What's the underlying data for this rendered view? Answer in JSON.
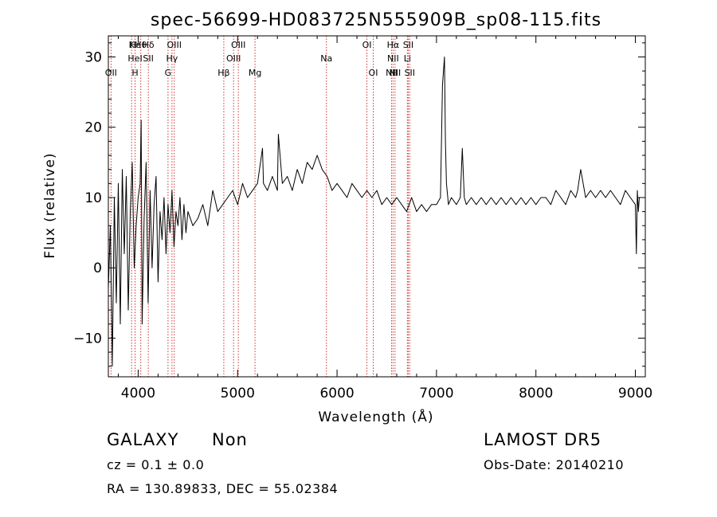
{
  "chart_data": {
    "type": "line",
    "title": "spec-56699-HD083725N555909B_sp08-115.fits",
    "xlabel": "Wavelength (Å)",
    "ylabel": "Flux (relative)",
    "xlim": [
      3700,
      9100
    ],
    "ylim": [
      -15.5,
      33
    ],
    "x_ticks": [
      4000,
      5000,
      6000,
      7000,
      8000,
      9000
    ],
    "y_ticks": [
      -10,
      0,
      10,
      20,
      30
    ],
    "grid": false,
    "line_color": "#000000",
    "marker_color": "#cc3333",
    "series": [
      {
        "x": [
          3700,
          3720,
          3740,
          3760,
          3780,
          3800,
          3820,
          3840,
          3860,
          3880,
          3900,
          3920,
          3940,
          3960,
          3980,
          4000,
          4020,
          4030,
          4040,
          4060,
          4080,
          4100,
          4120,
          4140,
          4160,
          4180,
          4200,
          4220,
          4240,
          4260,
          4280,
          4300,
          4320,
          4340,
          4360,
          4380,
          4400,
          4420,
          4440,
          4460,
          4480,
          4500,
          4550,
          4600,
          4650,
          4700,
          4750,
          4800,
          4850,
          4900,
          4950,
          5000,
          5050,
          5100,
          5150,
          5200,
          5250,
          5260,
          5300,
          5350,
          5400,
          5410,
          5450,
          5500,
          5550,
          5600,
          5650,
          5700,
          5750,
          5800,
          5850,
          5900,
          5950,
          6000,
          6050,
          6100,
          6150,
          6200,
          6250,
          6300,
          6350,
          6400,
          6450,
          6500,
          6550,
          6600,
          6650,
          6700,
          6750,
          6800,
          6850,
          6900,
          6950,
          7000,
          7040,
          7060,
          7080,
          7090,
          7100,
          7120,
          7150,
          7200,
          7240,
          7260,
          7280,
          7300,
          7350,
          7400,
          7450,
          7500,
          7550,
          7600,
          7650,
          7700,
          7750,
          7800,
          7850,
          7900,
          7950,
          8000,
          8050,
          8100,
          8150,
          8200,
          8250,
          8300,
          8350,
          8400,
          8420,
          8450,
          8500,
          8550,
          8600,
          8650,
          8700,
          8750,
          8800,
          8850,
          8900,
          8950,
          9000,
          9010,
          9020,
          9030,
          9040
        ],
        "y": [
          -3,
          6,
          -14,
          10,
          -5,
          12,
          -8,
          14,
          2,
          13,
          -6,
          8,
          15,
          0,
          6,
          10,
          12,
          21,
          -8,
          7,
          15,
          -5,
          11,
          0,
          9,
          13,
          -2,
          8,
          4,
          10,
          2,
          9,
          5,
          11,
          3,
          8,
          6,
          10,
          4,
          9,
          5,
          8,
          6,
          7,
          9,
          6,
          11,
          8,
          9,
          10,
          11,
          9,
          12,
          10,
          11,
          12,
          17,
          12,
          11,
          13,
          11,
          19,
          12,
          13,
          11,
          14,
          12,
          15,
          14,
          16,
          14,
          13,
          11,
          12,
          11,
          10,
          12,
          11,
          10,
          11,
          10,
          11,
          9,
          10,
          9,
          10,
          9,
          8,
          10,
          8,
          9,
          8,
          9,
          9,
          10,
          26,
          30,
          18,
          12,
          9,
          10,
          9,
          10,
          17,
          10,
          9,
          10,
          9,
          10,
          9,
          10,
          9,
          10,
          9,
          10,
          9,
          10,
          9,
          10,
          9,
          10,
          10,
          9,
          11,
          10,
          9,
          11,
          10,
          11,
          14,
          10,
          11,
          10,
          11,
          10,
          11,
          10,
          9,
          11,
          10,
          9,
          2,
          11,
          8,
          10
        ]
      }
    ],
    "line_markers": [
      {
        "x": 3727,
        "labels": [
          "OII"
        ],
        "rows": [
          2
        ]
      },
      {
        "x": 3934,
        "labels": [
          "K"
        ],
        "rows": [
          0
        ]
      },
      {
        "x": 3969,
        "labels": [
          "H",
          "HeI",
          "Hε"
        ],
        "rows": [
          2,
          1,
          0
        ]
      },
      {
        "x": 4026,
        "labels": [
          "Hθ"
        ],
        "rows": [
          0
        ]
      },
      {
        "x": 4102,
        "labels": [
          "Hδ",
          "SII"
        ],
        "rows": [
          0,
          1
        ]
      },
      {
        "x": 4300,
        "labels": [
          "G"
        ],
        "rows": [
          2
        ]
      },
      {
        "x": 4340,
        "labels": [
          "Hγ"
        ],
        "rows": [
          1
        ]
      },
      {
        "x": 4363,
        "labels": [
          "OIII"
        ],
        "rows": [
          0
        ]
      },
      {
        "x": 4861,
        "labels": [
          "Hβ"
        ],
        "rows": [
          2
        ]
      },
      {
        "x": 4959,
        "labels": [
          "OIII"
        ],
        "rows": [
          1
        ]
      },
      {
        "x": 5007,
        "labels": [
          "OIII"
        ],
        "rows": [
          0
        ]
      },
      {
        "x": 5175,
        "labels": [
          "Mg"
        ],
        "rows": [
          2
        ]
      },
      {
        "x": 5893,
        "labels": [
          "Na"
        ],
        "rows": [
          1
        ]
      },
      {
        "x": 6300,
        "labels": [
          "OI"
        ],
        "rows": [
          0
        ]
      },
      {
        "x": 6364,
        "labels": [
          "OI"
        ],
        "rows": [
          2
        ]
      },
      {
        "x": 6548,
        "labels": [
          "NII"
        ],
        "rows": [
          2
        ]
      },
      {
        "x": 6563,
        "labels": [
          "Hα",
          "NII"
        ],
        "rows": [
          0,
          1
        ]
      },
      {
        "x": 6583,
        "labels": [
          "NII"
        ],
        "rows": [
          2
        ]
      },
      {
        "x": 6707,
        "labels": [
          "Li"
        ],
        "rows": [
          1
        ]
      },
      {
        "x": 6716,
        "labels": [
          "SII"
        ],
        "rows": [
          0
        ]
      },
      {
        "x": 6731,
        "labels": [
          "SII"
        ],
        "rows": [
          2
        ]
      }
    ]
  },
  "info": {
    "object_class": "GALAXY",
    "subclass": "Non",
    "survey": "LAMOST DR5",
    "cz_line": "cz = 0.1 ± 0.0",
    "obs_date": "Obs-Date: 20140210",
    "coords": "RA = 130.89833, DEC =  55.02384"
  }
}
